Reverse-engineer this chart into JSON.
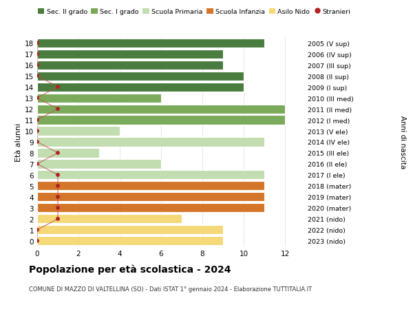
{
  "ages": [
    18,
    17,
    16,
    15,
    14,
    13,
    12,
    11,
    10,
    9,
    8,
    7,
    6,
    5,
    4,
    3,
    2,
    1,
    0
  ],
  "years": [
    "2005 (V sup)",
    "2006 (IV sup)",
    "2007 (III sup)",
    "2008 (II sup)",
    "2009 (I sup)",
    "2010 (III med)",
    "2011 (II med)",
    "2012 (I med)",
    "2013 (V ele)",
    "2014 (IV ele)",
    "2015 (III ele)",
    "2016 (II ele)",
    "2017 (I ele)",
    "2018 (mater)",
    "2019 (mater)",
    "2020 (mater)",
    "2021 (nido)",
    "2022 (nido)",
    "2023 (nido)"
  ],
  "bar_values": [
    11,
    9,
    9,
    10,
    10,
    6,
    12,
    12,
    4,
    11,
    3,
    6,
    11,
    11,
    11,
    11,
    7,
    9,
    9
  ],
  "stranieri": [
    0,
    0,
    0,
    0,
    1,
    0,
    1,
    0,
    0,
    0,
    1,
    0,
    1,
    1,
    1,
    1,
    1,
    0,
    0
  ],
  "bar_colors": [
    "#4a7c3f",
    "#4a7c3f",
    "#4a7c3f",
    "#4a7c3f",
    "#4a7c3f",
    "#7aaa5a",
    "#7aaa5a",
    "#7aaa5a",
    "#c2ddb0",
    "#c2ddb0",
    "#c2ddb0",
    "#c2ddb0",
    "#c2ddb0",
    "#d4762a",
    "#d4762a",
    "#d4762a",
    "#f5d878",
    "#f5d878",
    "#f5d878"
  ],
  "legend_labels": [
    "Sec. II grado",
    "Sec. I grado",
    "Scuola Primaria",
    "Scuola Infanzia",
    "Asilo Nido",
    "Stranieri"
  ],
  "legend_colors": [
    "#4a7c3f",
    "#7aaa5a",
    "#c2ddb0",
    "#d4762a",
    "#f5d878",
    "#b22222"
  ],
  "title": "Popolazione per età scolastica - 2024",
  "subtitle": "COMUNE DI MAZZO DI VALTELLINA (SO) - Dati ISTAT 1° gennaio 2024 - Elaborazione TUTTITALIA.IT",
  "ylabel_left": "Età alunni",
  "ylabel_right": "Anni di nascita",
  "xlim": [
    0,
    13
  ],
  "stranieri_color": "#b22222",
  "stranieri_line_color": "#c0504d",
  "background_color": "#ffffff",
  "grid_color": "#cccccc",
  "bar_height": 0.82,
  "figsize": [
    6.0,
    4.6
  ],
  "dpi": 100
}
